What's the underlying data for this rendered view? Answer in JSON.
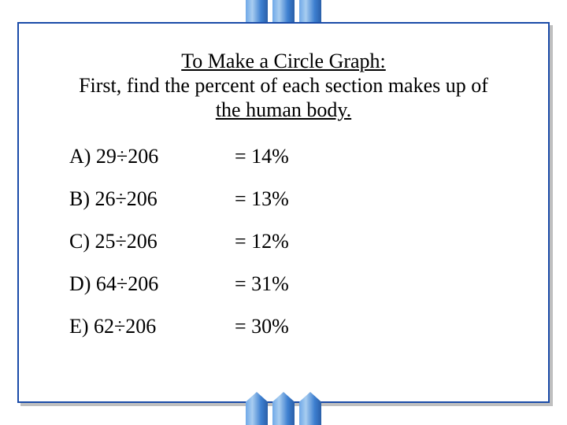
{
  "title": {
    "line1": "To Make a Circle Graph:",
    "line2": "First, find the percent of each section makes up of",
    "line3": "the human body."
  },
  "rows": [
    {
      "expr": "A) 29÷206",
      "result": "= 14%"
    },
    {
      "expr": "B) 26÷206",
      "result": "= 13%"
    },
    {
      "expr": "C) 25÷206",
      "result": "= 12%"
    },
    {
      "expr": "D) 64÷206",
      "result": "= 31%"
    },
    {
      "expr": "E) 62÷206",
      "result": "= 30%"
    }
  ],
  "style": {
    "frame_border_color": "#1a4ba8",
    "pillar_gradient": [
      "#6fa8e8",
      "#a8cdf0",
      "#3d7fd0",
      "#2a5fa8"
    ],
    "background_color": "#ffffff",
    "text_color": "#000000",
    "title_fontsize": 26,
    "row_fontsize": 26,
    "font_family": "Times New Roman"
  }
}
